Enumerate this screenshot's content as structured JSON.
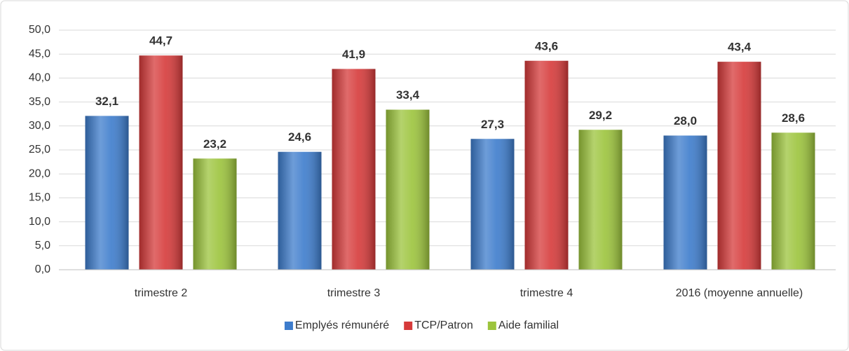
{
  "chart_data": {
    "type": "bar",
    "categories": [
      "trimestre 2",
      "trimestre 3",
      "trimestre 4",
      "2016 (moyenne annuelle)"
    ],
    "series": [
      {
        "name": "Emplyés rémunéré",
        "color": "#3d7ccc",
        "values": [
          32.1,
          24.6,
          27.3,
          28.0
        ],
        "value_labels": [
          "32,1",
          "24,6",
          "27,3",
          "28,0"
        ]
      },
      {
        "name": "TCP/Patron",
        "color": "#d63a3a",
        "values": [
          44.7,
          41.9,
          43.6,
          43.4
        ],
        "value_labels": [
          "44,7",
          "41,9",
          "43,6",
          "43,4"
        ]
      },
      {
        "name": "Aide familial",
        "color": "#9cc43c",
        "values": [
          23.2,
          33.4,
          29.2,
          28.6
        ],
        "value_labels": [
          "23,2",
          "33,4",
          "29,2",
          "28,6"
        ]
      }
    ],
    "ylim": [
      0,
      50
    ],
    "yticks": [
      {
        "value": 0,
        "label": "0,0"
      },
      {
        "value": 5,
        "label": "5,0"
      },
      {
        "value": 10,
        "label": "10,0"
      },
      {
        "value": 15,
        "label": "15,0"
      },
      {
        "value": 20,
        "label": "20,0"
      },
      {
        "value": 25,
        "label": "25,0"
      },
      {
        "value": 30,
        "label": "30,0"
      },
      {
        "value": 35,
        "label": "35,0"
      },
      {
        "value": 40,
        "label": "40,0"
      },
      {
        "value": 45,
        "label": "45,0"
      },
      {
        "value": 50,
        "label": "50,0"
      }
    ],
    "grid": true,
    "legend": "bottom"
  }
}
